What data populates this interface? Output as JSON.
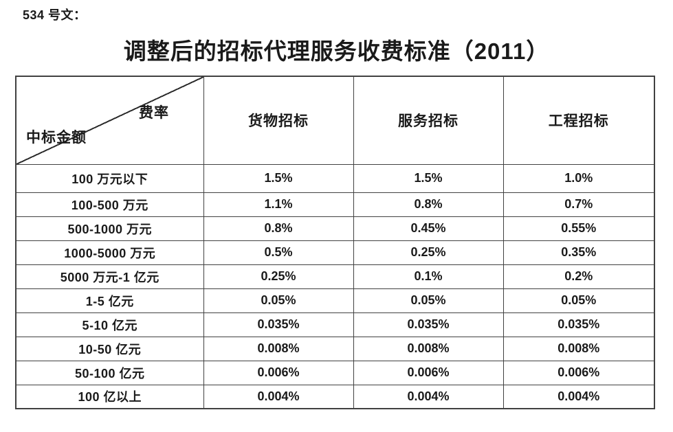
{
  "page": {
    "doc_label": "534 号文：",
    "title": "调整后的招标代理服务收费标准（2011）"
  },
  "table": {
    "corner": {
      "rate_label": "费率",
      "amount_label": "中标金额"
    },
    "columns": [
      "货物招标",
      "服务招标",
      "工程招标"
    ],
    "rows": [
      {
        "label": "100 万元以下",
        "values": [
          "1.5%",
          "1.5%",
          "1.0%"
        ]
      },
      {
        "label": "100-500 万元",
        "values": [
          "1.1%",
          "0.8%",
          "0.7%"
        ]
      },
      {
        "label": "500-1000 万元",
        "values": [
          "0.8%",
          "0.45%",
          "0.55%"
        ]
      },
      {
        "label": "1000-5000 万元",
        "values": [
          "0.5%",
          "0.25%",
          "0.35%"
        ]
      },
      {
        "label": "5000 万元-1 亿元",
        "values": [
          "0.25%",
          "0.1%",
          "0.2%"
        ]
      },
      {
        "label": "1-5 亿元",
        "values": [
          "0.05%",
          "0.05%",
          "0.05%"
        ]
      },
      {
        "label": "5-10 亿元",
        "values": [
          "0.035%",
          "0.035%",
          "0.035%"
        ]
      },
      {
        "label": "10-50 亿元",
        "values": [
          "0.008%",
          "0.008%",
          "0.008%"
        ]
      },
      {
        "label": "50-100 亿元",
        "values": [
          "0.006%",
          "0.006%",
          "0.006%"
        ]
      },
      {
        "label": "100 亿以上",
        "values": [
          "0.004%",
          "0.004%",
          "0.004%"
        ]
      }
    ],
    "colors": {
      "text": "#1a1a1a",
      "border": "#404040",
      "background": "#ffffff"
    }
  }
}
